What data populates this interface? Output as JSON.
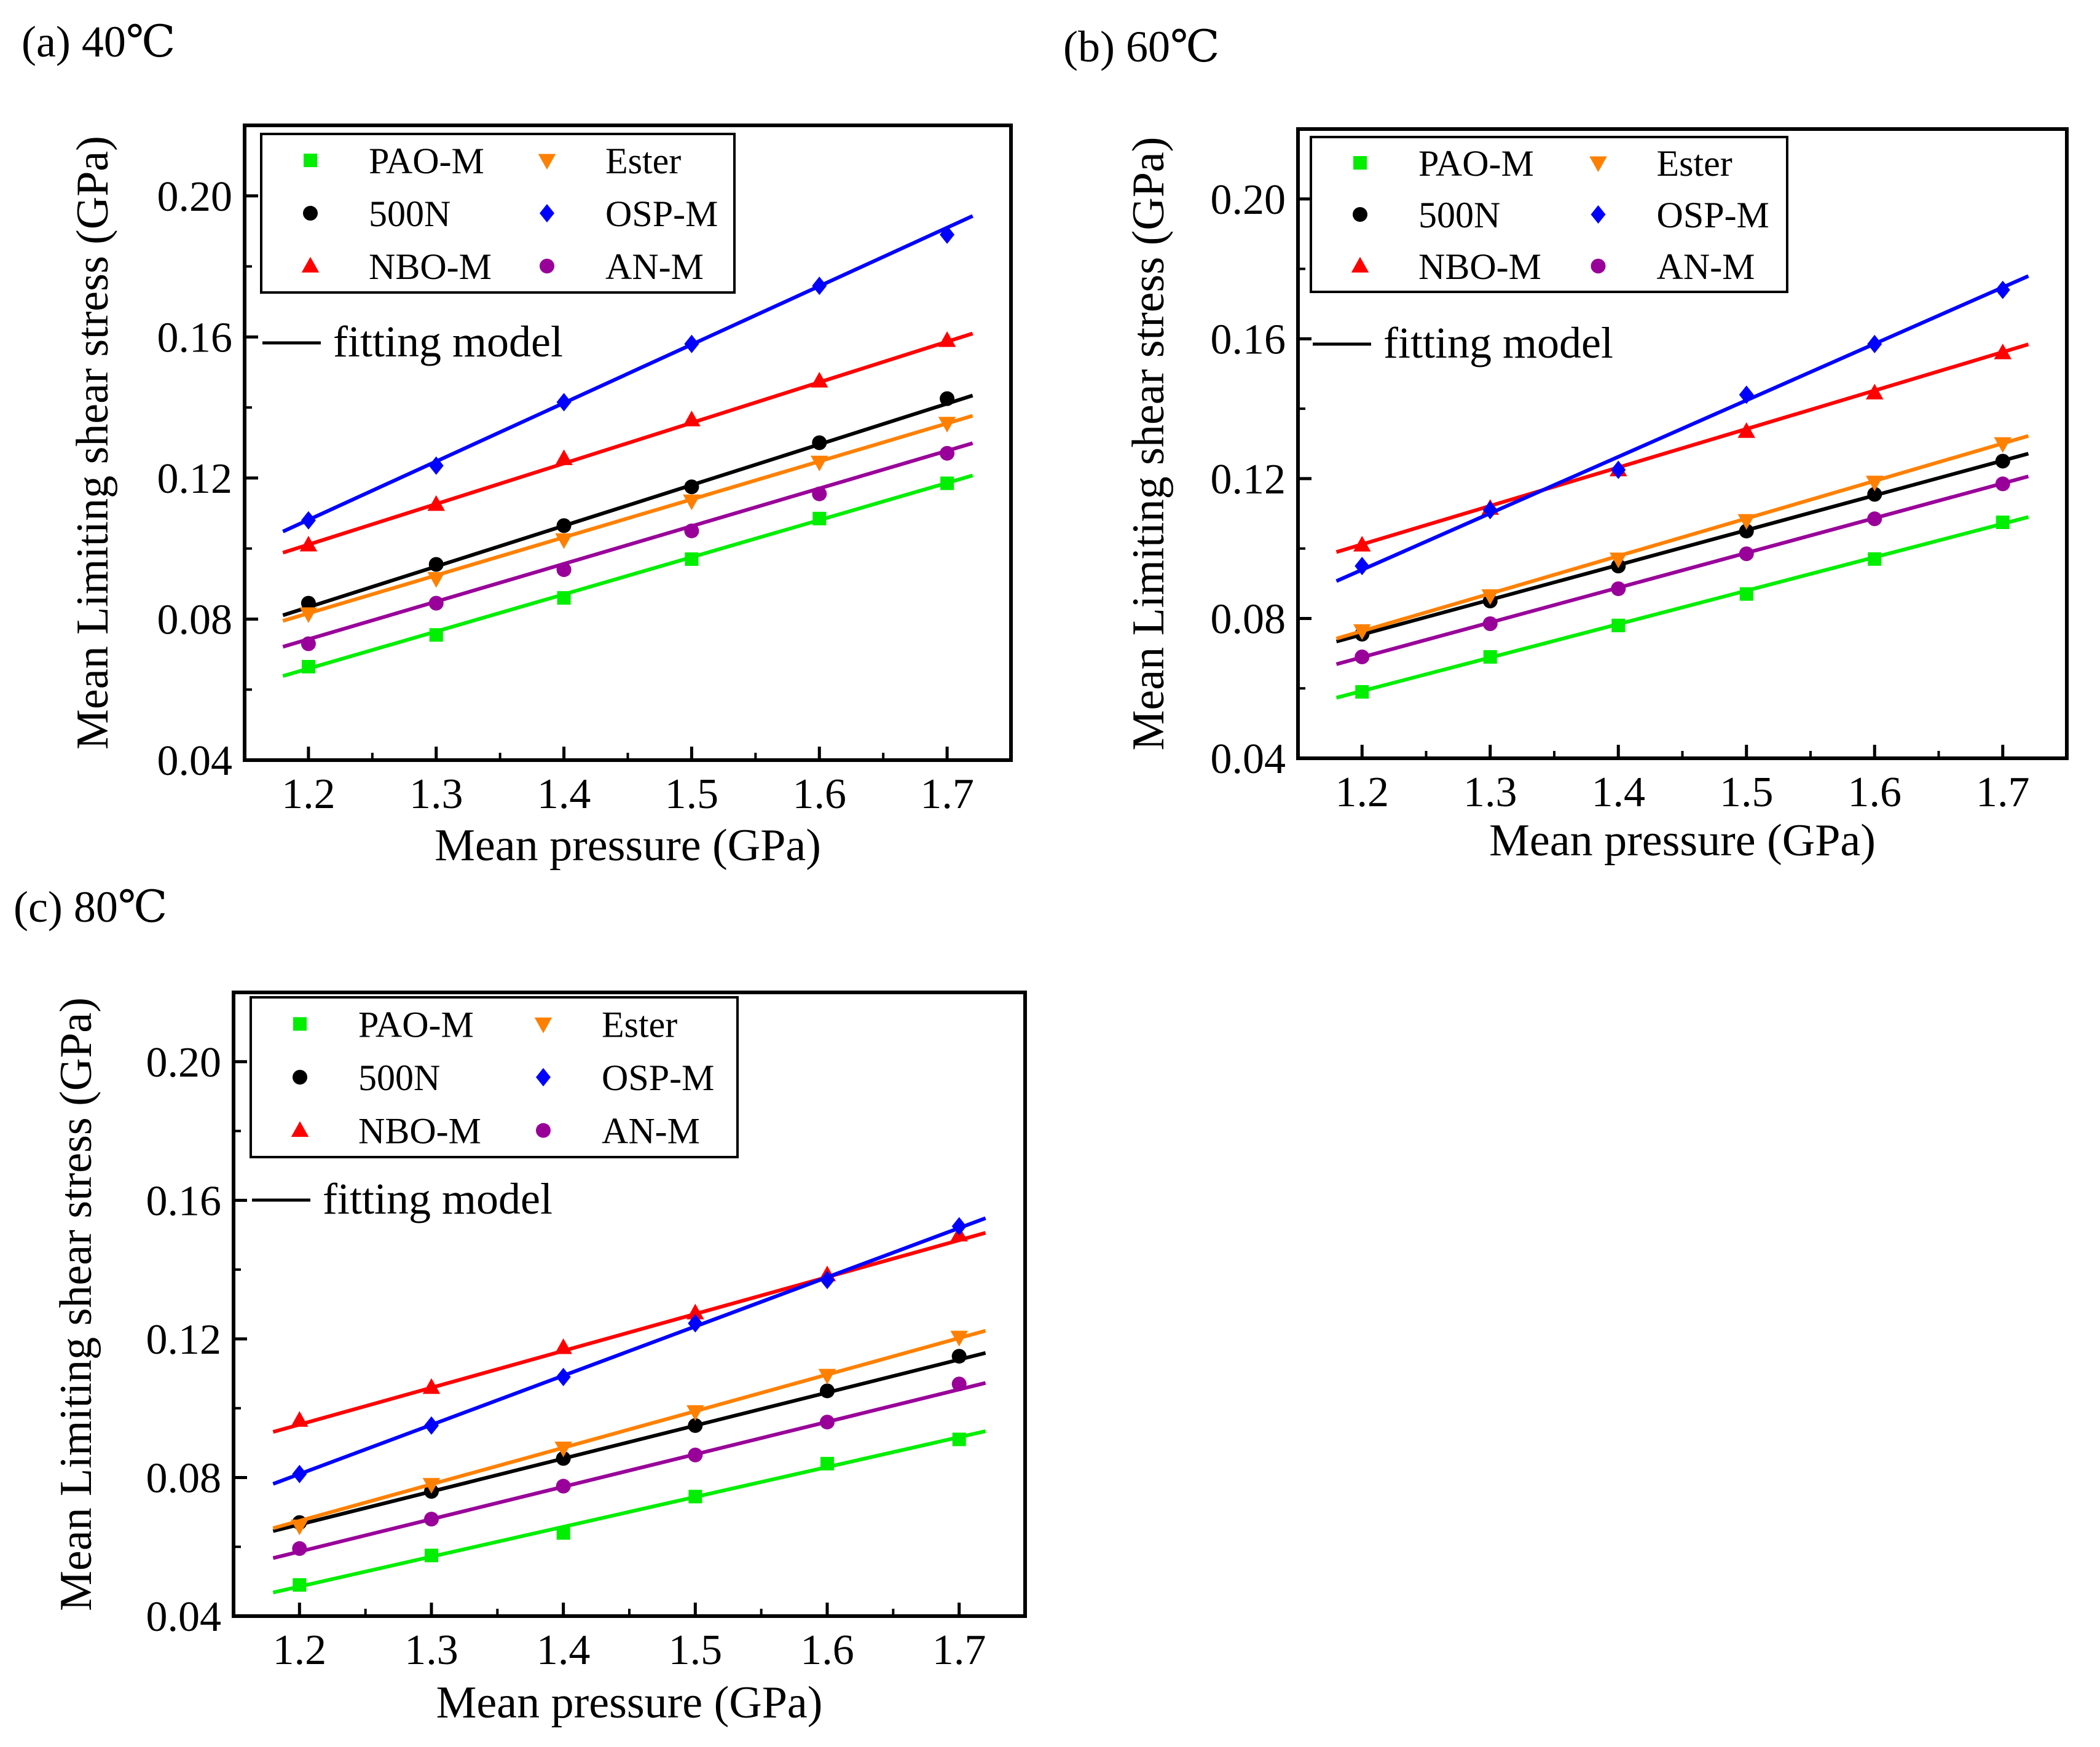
{
  "figure": {
    "legend_fit_label": "fitting model"
  },
  "chart_data": [
    {
      "type": "scatter",
      "title": "(a) 40℃",
      "xlabel": "Mean pressure (GPa)",
      "ylabel": "Mean Limiting shear stress (GPa)",
      "xlim": [
        1.15,
        1.75
      ],
      "ylim": [
        0.04,
        0.22
      ],
      "xticks": [
        1.2,
        1.3,
        1.4,
        1.5,
        1.6,
        1.7
      ],
      "xtick_labels": [
        "1.2",
        "1.3",
        "1.4",
        "1.5",
        "1.6",
        "1.7"
      ],
      "yticks": [
        0.04,
        0.08,
        0.12,
        0.16,
        0.2
      ],
      "ytick_labels": [
        "0.04",
        "0.08",
        "0.12",
        "0.16",
        "0.20"
      ],
      "legend_position": "top-left",
      "grid": false,
      "fit_x_range": [
        1.18,
        1.72
      ],
      "x": [
        1.2,
        1.3,
        1.4,
        1.5,
        1.6,
        1.7
      ],
      "series": [
        {
          "name": "PAO-M",
          "color": "#00ee00",
          "marker": "square",
          "values": [
            0.0665,
            0.0755,
            0.086,
            0.097,
            0.1085,
            0.1185
          ],
          "fit": [
            0.1053,
            -0.0604
          ]
        },
        {
          "name": "500N",
          "color": "#000000",
          "marker": "circle",
          "values": [
            0.0845,
            0.0955,
            0.1065,
            0.1175,
            0.13,
            0.1425
          ],
          "fit": [
            0.1154,
            -0.0551
          ]
        },
        {
          "name": "NBO-M",
          "color": "#ff0000",
          "marker": "triangle-up",
          "values": [
            0.101,
            0.1125,
            0.1255,
            0.1365,
            0.1475,
            0.159
          ],
          "fit": [
            0.1151,
            -0.037
          ]
        },
        {
          "name": "Ester",
          "color": "#ff8000",
          "marker": "triangle-down",
          "values": [
            0.0815,
            0.0915,
            0.1025,
            0.1135,
            0.1245,
            0.1355
          ],
          "fit": [
            0.1077,
            -0.0476
          ]
        },
        {
          "name": "OSP-M",
          "color": "#0000ff",
          "marker": "diamond",
          "values": [
            0.108,
            0.1235,
            0.1415,
            0.158,
            0.1745,
            0.189
          ],
          "fit": [
            0.1657,
            -0.0907
          ]
        },
        {
          "name": "AN-M",
          "color": "#990099",
          "marker": "circle",
          "values": [
            0.073,
            0.0845,
            0.094,
            0.105,
            0.1155,
            0.127
          ],
          "fit": [
            0.1069,
            -0.054
          ]
        }
      ]
    },
    {
      "type": "scatter",
      "title": "(b) 60℃",
      "xlabel": "Mean pressure (GPa)",
      "ylabel": "Mean Limiting shear stress (GPa)",
      "xlim": [
        1.15,
        1.75
      ],
      "ylim": [
        0.04,
        0.22
      ],
      "xticks": [
        1.2,
        1.3,
        1.4,
        1.5,
        1.6,
        1.7
      ],
      "xtick_labels": [
        "1.2",
        "1.3",
        "1.4",
        "1.5",
        "1.6",
        "1.7"
      ],
      "yticks": [
        0.04,
        0.08,
        0.12,
        0.16,
        0.2
      ],
      "ytick_labels": [
        "0.04",
        "0.08",
        "0.12",
        "0.16",
        "0.20"
      ],
      "legend_position": "top-left",
      "grid": false,
      "fit_x_range": [
        1.18,
        1.72
      ],
      "x": [
        1.2,
        1.3,
        1.4,
        1.5,
        1.6,
        1.7
      ],
      "series": [
        {
          "name": "PAO-M",
          "color": "#00ee00",
          "marker": "square",
          "values": [
            0.059,
            0.069,
            0.078,
            0.087,
            0.097,
            0.1075
          ],
          "fit": [
            0.0957,
            -0.0556
          ]
        },
        {
          "name": "500N",
          "color": "#000000",
          "marker": "circle",
          "values": [
            0.0755,
            0.085,
            0.095,
            0.105,
            0.1155,
            0.125
          ],
          "fit": [
            0.0995,
            -0.044
          ]
        },
        {
          "name": "NBO-M",
          "color": "#ff0000",
          "marker": "triangle-up",
          "values": [
            0.101,
            0.1115,
            0.1225,
            0.1335,
            0.1445,
            0.156
          ],
          "fit": [
            0.11,
            -0.0308
          ]
        },
        {
          "name": "Ester",
          "color": "#ff8000",
          "marker": "triangle-down",
          "values": [
            0.0765,
            0.0865,
            0.097,
            0.108,
            0.119,
            0.13
          ],
          "fit": [
            0.1074,
            -0.0525
          ]
        },
        {
          "name": "OSP-M",
          "color": "#0000ff",
          "marker": "diamond",
          "values": [
            0.095,
            0.111,
            0.1225,
            0.144,
            0.1585,
            0.174
          ],
          "fit": [
            0.1616,
            -0.1
          ]
        },
        {
          "name": "AN-M",
          "color": "#990099",
          "marker": "circle",
          "values": [
            0.069,
            0.0785,
            0.0885,
            0.0985,
            0.1085,
            0.1185
          ],
          "fit": [
            0.0995,
            -0.0505
          ]
        }
      ]
    },
    {
      "type": "scatter",
      "title": "(c) 80℃",
      "xlabel": "Mean pressure (GPa)",
      "ylabel": "Mean Limiting shear stress (GPa)",
      "xlim": [
        1.15,
        1.75
      ],
      "ylim": [
        0.04,
        0.22
      ],
      "xticks": [
        1.2,
        1.3,
        1.4,
        1.5,
        1.6,
        1.7
      ],
      "xtick_labels": [
        "1.2",
        "1.3",
        "1.4",
        "1.5",
        "1.6",
        "1.7"
      ],
      "yticks": [
        0.04,
        0.08,
        0.12,
        0.16,
        0.2
      ],
      "ytick_labels": [
        "0.04",
        "0.08",
        "0.12",
        "0.16",
        "0.20"
      ],
      "legend_position": "top-left",
      "grid": false,
      "fit_x_range": [
        1.18,
        1.72
      ],
      "x": [
        1.2,
        1.3,
        1.4,
        1.5,
        1.6,
        1.7
      ],
      "series": [
        {
          "name": "PAO-M",
          "color": "#00ee00",
          "marker": "square",
          "values": [
            0.049,
            0.0575,
            0.064,
            0.0745,
            0.084,
            0.091
          ],
          "fit": [
            0.0862,
            -0.0549
          ]
        },
        {
          "name": "500N",
          "color": "#000000",
          "marker": "circle",
          "values": [
            0.067,
            0.076,
            0.0855,
            0.095,
            0.105,
            0.115
          ],
          "fit": [
            0.0952,
            -0.0478
          ]
        },
        {
          "name": "NBO-M",
          "color": "#ff0000",
          "marker": "triangle-up",
          "values": [
            0.0965,
            0.106,
            0.1175,
            0.1275,
            0.1385,
            0.15
          ],
          "fit": [
            0.1064,
            -0.0324
          ]
        },
        {
          "name": "Ester",
          "color": "#ff8000",
          "marker": "triangle-down",
          "values": [
            0.066,
            0.078,
            0.0885,
            0.099,
            0.1095,
            0.1205
          ],
          "fit": [
            0.1055,
            -0.0591
          ]
        },
        {
          "name": "OSP-M",
          "color": "#0000ff",
          "marker": "diamond",
          "values": [
            0.081,
            0.095,
            0.109,
            0.1245,
            0.137,
            0.1525
          ],
          "fit": [
            0.142,
            -0.0894
          ]
        },
        {
          "name": "AN-M",
          "color": "#990099",
          "marker": "circle",
          "values": [
            0.0595,
            0.068,
            0.0775,
            0.0865,
            0.096,
            0.107
          ],
          "fit": [
            0.0936,
            -0.0537
          ]
        }
      ]
    }
  ]
}
